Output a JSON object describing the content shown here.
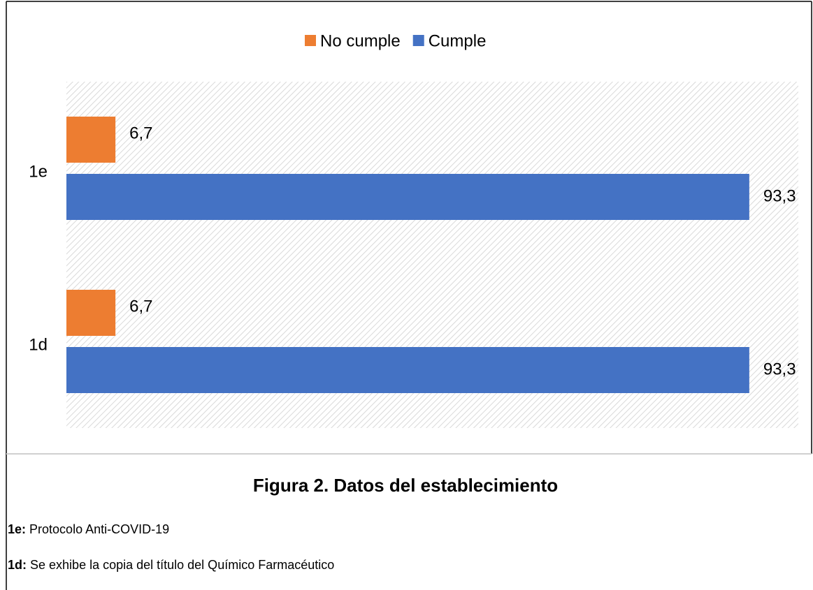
{
  "chart_data": {
    "type": "bar",
    "orientation": "horizontal",
    "categories": [
      "1e",
      "1d"
    ],
    "series": [
      {
        "name": "No cumple",
        "color": "#ED7D31",
        "values": [
          6.7,
          6.7
        ],
        "value_labels": [
          "6,7",
          "6,7"
        ]
      },
      {
        "name": "Cumple",
        "color": "#4472C4",
        "values": [
          93.3,
          93.3
        ],
        "value_labels": [
          "93,3",
          "93,3"
        ]
      }
    ],
    "xlim": [
      0,
      100
    ],
    "legend": "top"
  },
  "caption": "Figura 2. Datos del establecimiento",
  "notes": [
    {
      "key": "1e:",
      "text": "Protocolo Anti-COVID-19"
    },
    {
      "key": "1d:",
      "text": "Se exhibe la copia del título del Químico Farmacéutico"
    }
  ]
}
